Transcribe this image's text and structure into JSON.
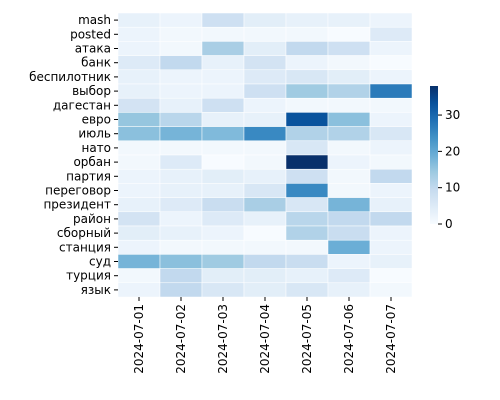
{
  "chart_data": {
    "type": "heatmap",
    "x_categories": [
      "2024-07-01",
      "2024-07-02",
      "2024-07-03",
      "2024-07-04",
      "2024-07-05",
      "2024-07-06",
      "2024-07-07"
    ],
    "y_categories": [
      "mash",
      "posted",
      "атака",
      "банк",
      "беспилотник",
      "выбор",
      "дагестан",
      "евро",
      "июль",
      "нато",
      "орбан",
      "партия",
      "переговор",
      "президент",
      "район",
      "сборный",
      "станция",
      "суд",
      "турция",
      "язык"
    ],
    "values": [
      [
        3,
        2,
        8,
        4,
        3,
        3,
        2
      ],
      [
        2,
        1,
        1,
        1,
        1,
        0,
        5
      ],
      [
        2,
        1,
        13,
        4,
        10,
        8,
        2
      ],
      [
        5,
        10,
        3,
        7,
        2,
        1,
        0
      ],
      [
        3,
        2,
        2,
        5,
        6,
        4,
        2
      ],
      [
        3,
        2,
        2,
        8,
        14,
        12,
        27
      ],
      [
        7,
        3,
        8,
        2,
        1,
        1,
        1
      ],
      [
        15,
        11,
        3,
        3,
        33,
        16,
        2
      ],
      [
        16,
        18,
        17,
        25,
        12,
        12,
        6
      ],
      [
        1,
        1,
        1,
        1,
        6,
        1,
        2
      ],
      [
        1,
        5,
        0,
        1,
        38,
        2,
        1
      ],
      [
        2,
        3,
        4,
        3,
        8,
        1,
        10
      ],
      [
        2,
        3,
        3,
        6,
        25,
        1,
        2
      ],
      [
        3,
        5,
        9,
        13,
        6,
        18,
        3
      ],
      [
        7,
        2,
        5,
        3,
        11,
        10,
        10
      ],
      [
        4,
        3,
        2,
        0,
        12,
        9,
        2
      ],
      [
        2,
        1,
        1,
        1,
        1,
        19,
        2
      ],
      [
        18,
        16,
        14,
        10,
        9,
        2,
        3
      ],
      [
        1,
        10,
        4,
        4,
        3,
        5,
        0
      ],
      [
        2,
        10,
        6,
        4,
        6,
        3,
        1
      ]
    ],
    "colormap": "Blues",
    "clim": [
      0,
      38
    ],
    "cticks": [
      0,
      10,
      20,
      30
    ]
  }
}
